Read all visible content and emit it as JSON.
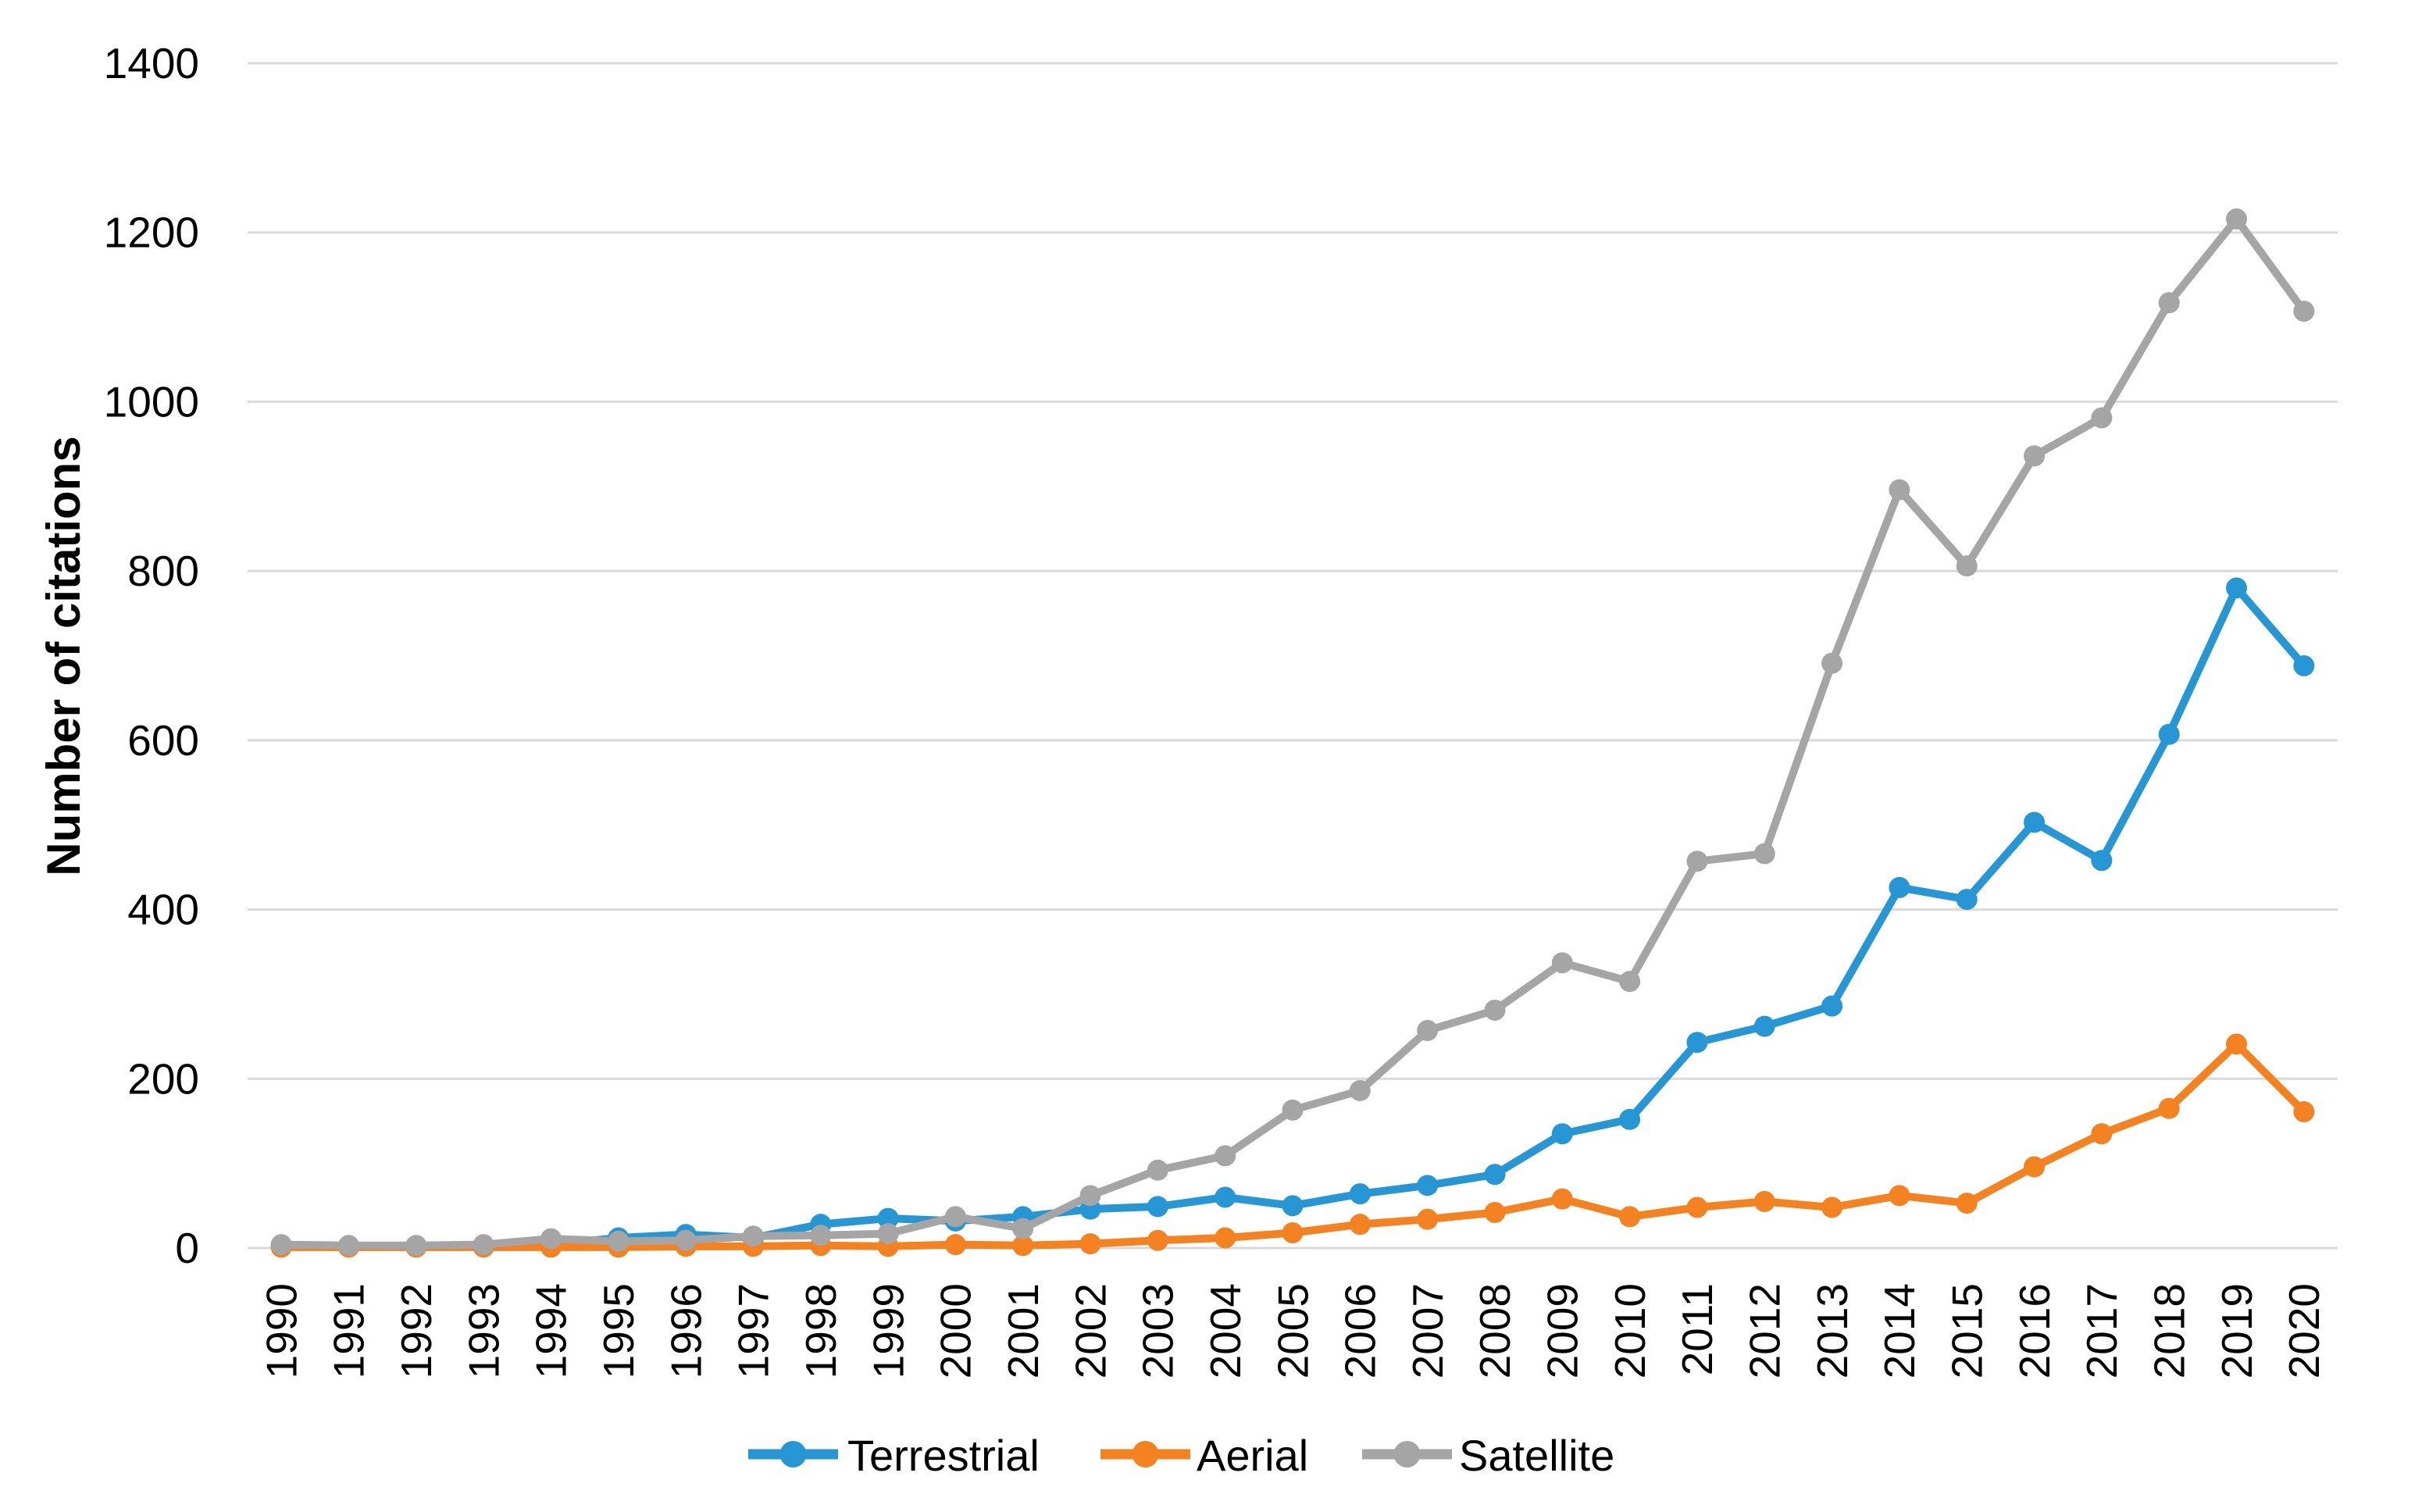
{
  "chart_data": {
    "type": "line",
    "title": "",
    "xlabel": "",
    "ylabel": "Number of citations",
    "ylim": [
      0,
      1400
    ],
    "y_ticks": [
      0,
      200,
      400,
      600,
      800,
      1000,
      1200,
      1400
    ],
    "grid": "horizontal",
    "legend_position": "bottom",
    "categories": [
      "1990",
      "1991",
      "1992",
      "1993",
      "1994",
      "1995",
      "1996",
      "1997",
      "1998",
      "1999",
      "2000",
      "2001",
      "2002",
      "2003",
      "2004",
      "2005",
      "2006",
      "2007",
      "2008",
      "2009",
      "2010",
      "2011",
      "2012",
      "2013",
      "2014",
      "2015",
      "2016",
      "2017",
      "2018",
      "2019",
      "2020"
    ],
    "series": [
      {
        "name": "Terrestrial",
        "color": "#2697D4",
        "values": [
          2,
          2,
          2,
          3,
          4,
          12,
          16,
          12,
          28,
          35,
          32,
          37,
          46,
          49,
          60,
          50,
          64,
          74,
          87,
          135,
          152,
          243,
          262,
          286,
          426,
          412,
          503,
          458,
          607,
          780,
          688
        ]
      },
      {
        "name": "Aerial",
        "color": "#F58220",
        "values": [
          1,
          1,
          1,
          1,
          1,
          1,
          2,
          2,
          3,
          2,
          4,
          3,
          5,
          9,
          12,
          18,
          28,
          34,
          42,
          58,
          37,
          48,
          55,
          48,
          62,
          53,
          96,
          135,
          165,
          241,
          161
        ]
      },
      {
        "name": "Satellite",
        "color": "#A5A5A5",
        "values": [
          4,
          3,
          3,
          4,
          11,
          8,
          9,
          14,
          15,
          17,
          37,
          23,
          62,
          92,
          109,
          163,
          186,
          257,
          281,
          337,
          315,
          457,
          466,
          691,
          896,
          806,
          936,
          981,
          1117,
          1216,
          1107
        ]
      }
    ]
  },
  "colors": {
    "background": "#FFFFFF",
    "gridline": "#D9D9D9",
    "text": "#000000"
  }
}
